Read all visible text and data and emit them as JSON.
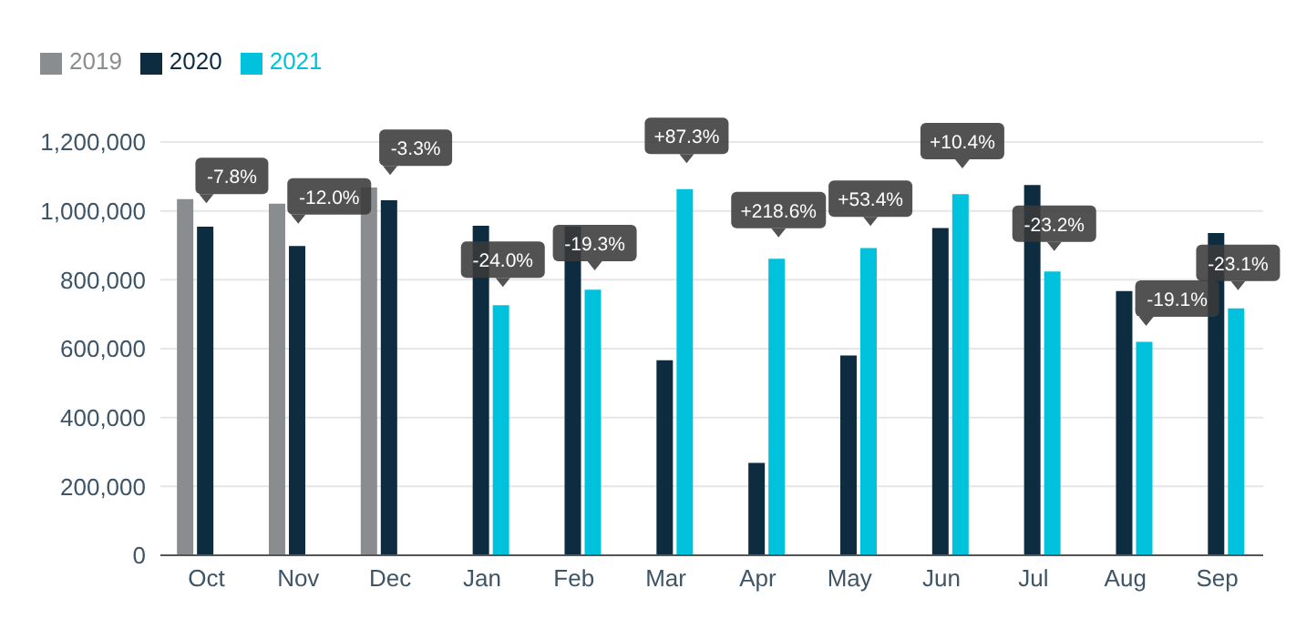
{
  "chart_data": {
    "type": "bar",
    "categories": [
      "Oct",
      "Nov",
      "Dec",
      "Jan",
      "Feb",
      "Mar",
      "Apr",
      "May",
      "Jun",
      "Jul",
      "Aug",
      "Sep"
    ],
    "series": [
      {
        "name": "2019",
        "color": "#8a8d8f",
        "values": [
          1034000,
          1021000,
          1068000,
          null,
          null,
          null,
          null,
          null,
          null,
          null,
          null,
          null
        ]
      },
      {
        "name": "2020",
        "color": "#0d2c40",
        "values": [
          954000,
          898000,
          1031000,
          957000,
          955000,
          566000,
          268000,
          580000,
          950000,
          1075000,
          767000,
          936000
        ]
      },
      {
        "name": "2021",
        "color": "#00c2dc",
        "values": [
          null,
          null,
          null,
          726000,
          771000,
          1063000,
          861000,
          892000,
          1049000,
          824000,
          620000,
          717000
        ]
      }
    ],
    "ylim": [
      0,
      1200000
    ],
    "yticks": [
      0,
      {
        "value": 200000,
        "label": "200,000"
      },
      {
        "value": 400000,
        "label": "400,000"
      },
      {
        "value": 600000,
        "label": "600,000"
      },
      {
        "value": 800000,
        "label": "800,000"
      },
      {
        "value": 1000000,
        "label": "1,000,000"
      },
      {
        "value": 1200000,
        "label": "1,200,000"
      }
    ],
    "grid": "y",
    "legend": "top left",
    "annotations": [
      {
        "text": "-7.8%",
        "x": "Oct",
        "y": 954000
      },
      {
        "text": "-12.0%",
        "x": "Nov",
        "y": 898000
      },
      {
        "text": "-3.3%",
        "x": "Dec",
        "y": 1031000
      },
      {
        "text": "-24.0%",
        "x": "Jan",
        "y": 726000
      },
      {
        "text": "-19.3%",
        "x": "Feb",
        "y": 771000
      },
      "+87.3%",
      "+218.6%",
      "+53.4%",
      "+10.4%",
      {
        "text": "-23.2%",
        "x": "Jul",
        "y": 824000
      },
      {
        "text": "-19.1%",
        "x": "Aug",
        "y": 620000
      },
      {
        "text": "-23.1%",
        "x": "Sep",
        "y": 717000
      }
    ]
  }
}
